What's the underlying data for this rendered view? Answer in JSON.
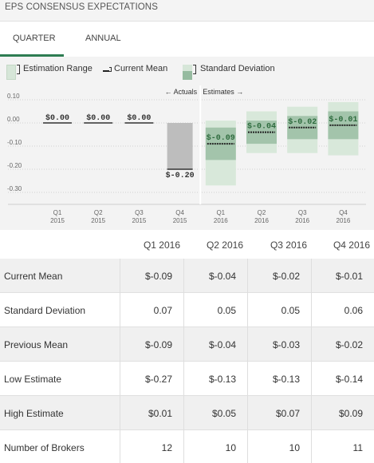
{
  "header": {
    "title": "EPS CONSENSUS EXPECTATIONS"
  },
  "tabs": [
    {
      "label": "QUARTER",
      "active": true
    },
    {
      "label": "ANNUAL",
      "active": false
    }
  ],
  "legend": {
    "estimation_range": "Estimation Range",
    "current_mean": "Current Mean",
    "standard_deviation": "Standard Deviation"
  },
  "chart_data": {
    "type": "bar",
    "actuals_label": "← Actuals",
    "estimates_label": "Estimates →",
    "y_ticks": [
      "0.10",
      "0.00",
      "-0.10",
      "-0.20",
      "-0.30"
    ],
    "y_tick_values": [
      0.1,
      0.0,
      -0.1,
      -0.2,
      -0.3
    ],
    "ylim": [
      -0.35,
      0.1
    ],
    "categories": [
      {
        "q": "Q1",
        "y": "2015"
      },
      {
        "q": "Q2",
        "y": "2015"
      },
      {
        "q": "Q3",
        "y": "2015"
      },
      {
        "q": "Q4",
        "y": "2015"
      },
      {
        "q": "Q1",
        "y": "2016"
      },
      {
        "q": "Q2",
        "y": "2016"
      },
      {
        "q": "Q3",
        "y": "2016"
      },
      {
        "q": "Q4",
        "y": "2016"
      }
    ],
    "actuals": [
      {
        "value": 0.0,
        "label": "$0.00"
      },
      {
        "value": 0.0,
        "label": "$0.00"
      },
      {
        "value": 0.0,
        "label": "$0.00"
      },
      {
        "value": -0.2,
        "label": "$-0.20"
      }
    ],
    "estimates": [
      {
        "mean": -0.09,
        "label": "$-0.09",
        "low": -0.27,
        "high": 0.01,
        "sd": 0.07
      },
      {
        "mean": -0.04,
        "label": "$-0.04",
        "low": -0.13,
        "high": 0.05,
        "sd": 0.05
      },
      {
        "mean": -0.02,
        "label": "$-0.02",
        "low": -0.13,
        "high": 0.07,
        "sd": 0.05
      },
      {
        "mean": -0.01,
        "label": "$-0.01",
        "low": -0.14,
        "high": 0.09,
        "sd": 0.06
      }
    ],
    "colors": {
      "actual_bar": "#bdbdbd",
      "range": "#d8e8da",
      "sd": "#a3c4ab",
      "label_green": "#2e6b3e",
      "label_dark": "#333333"
    }
  },
  "table": {
    "columns": [
      "Q1 2016",
      "Q2 2016",
      "Q3 2016",
      "Q4 2016"
    ],
    "rows": [
      {
        "label": "Current Mean",
        "values": [
          "$-0.09",
          "$-0.04",
          "$-0.02",
          "$-0.01"
        ]
      },
      {
        "label": "Standard Deviation",
        "values": [
          "0.07",
          "0.05",
          "0.05",
          "0.06"
        ]
      },
      {
        "label": "Previous Mean",
        "values": [
          "$-0.09",
          "$-0.04",
          "$-0.03",
          "$-0.02"
        ]
      },
      {
        "label": "Low Estimate",
        "values": [
          "$-0.27",
          "$-0.13",
          "$-0.13",
          "$-0.14"
        ]
      },
      {
        "label": "High Estimate",
        "values": [
          "$0.01",
          "$0.05",
          "$0.07",
          "$0.09"
        ]
      },
      {
        "label": "Number of Brokers",
        "values": [
          "12",
          "10",
          "10",
          "11"
        ]
      }
    ]
  }
}
